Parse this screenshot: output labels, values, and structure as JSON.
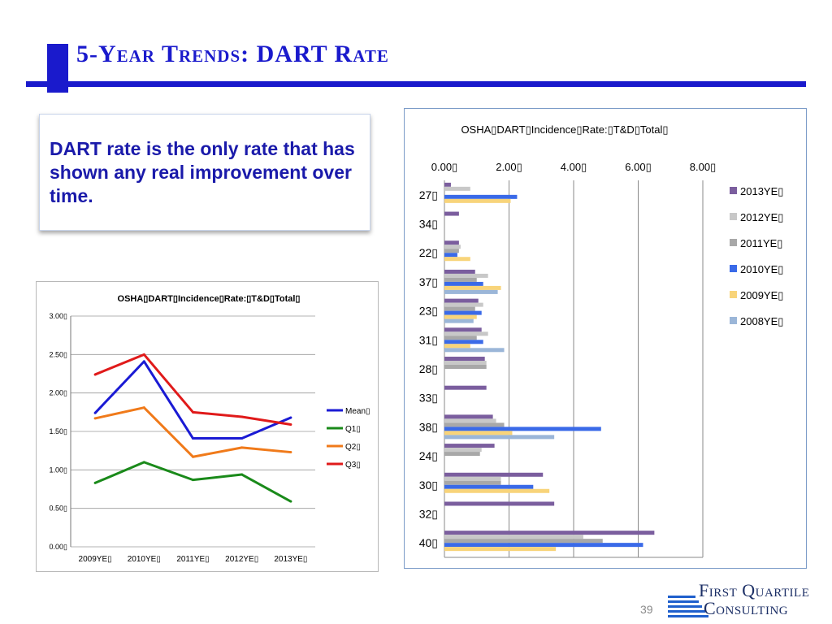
{
  "slide": {
    "title": "5-Year Trends: DART Rate",
    "callout": "DART rate is the only rate that has shown any real improvement over time.",
    "page_number": "39",
    "logo": {
      "line1": "First Quartile",
      "line2": "Consulting"
    },
    "colors": {
      "accent": "#1a1acc",
      "callout_text": "#1a1aaa",
      "logo_text": "#1c2f66",
      "logo_bars": "#1f5fcc"
    }
  },
  "chart_data": [
    {
      "type": "line",
      "title": "OSHA▯DART▯Incidence▯Rate:▯T&D▯Total▯",
      "categories": [
        "2009YE▯",
        "2010YE▯",
        "2011YE▯",
        "2012YE▯",
        "2013YE▯"
      ],
      "yticks": [
        "0.00▯",
        "0.50▯",
        "1.00▯",
        "1.50▯",
        "2.00▯",
        "2.50▯",
        "3.00▯"
      ],
      "ylim": [
        0,
        3
      ],
      "grid": true,
      "legend_position": "right",
      "series": [
        {
          "name": "Mean▯",
          "color": "#1a1ad4",
          "values": [
            1.74,
            2.41,
            1.41,
            1.41,
            1.68
          ]
        },
        {
          "name": "Q1▯",
          "color": "#1a8a1a",
          "values": [
            0.83,
            1.1,
            0.87,
            0.94,
            0.59
          ]
        },
        {
          "name": "Q2▯",
          "color": "#f07a1a",
          "values": [
            1.67,
            1.81,
            1.17,
            1.29,
            1.23
          ]
        },
        {
          "name": "Q3▯",
          "color": "#e01a1a",
          "values": [
            2.24,
            2.5,
            1.75,
            1.69,
            1.59
          ]
        }
      ]
    },
    {
      "type": "bar",
      "orientation": "horizontal",
      "title": "OSHA▯DART▯Incidence▯Rate:▯T&D▯Total▯",
      "categories": [
        "27▯",
        "34▯",
        "22▯",
        "37▯",
        "23▯",
        "31▯",
        "28▯",
        "33▯",
        "38▯",
        "24▯",
        "30▯",
        "32▯",
        "40▯"
      ],
      "xticks": [
        "0.00▯",
        "2.00▯",
        "4.00▯",
        "6.00▯",
        "8.00▯"
      ],
      "xlim": [
        0,
        8
      ],
      "axis_position": "top",
      "grid": true,
      "legend_position": "right",
      "series": [
        {
          "name": "2013YE▯",
          "color": "#7b5e9e",
          "values": [
            0.2,
            0.45,
            0.45,
            0.95,
            1.05,
            1.15,
            1.25,
            1.3,
            1.5,
            1.55,
            3.05,
            3.4,
            6.5
          ]
        },
        {
          "name": "2012YE▯",
          "color": "#c8c8c8",
          "values": [
            0.8,
            0,
            0.5,
            1.35,
            1.2,
            1.35,
            1.3,
            0,
            1.6,
            1.15,
            1.75,
            0,
            4.3
          ]
        },
        {
          "name": "2011YE▯",
          "color": "#a8a8a8",
          "values": [
            0,
            0,
            0.45,
            1.0,
            0.95,
            1.0,
            1.3,
            0,
            1.85,
            1.1,
            1.75,
            0,
            4.9
          ]
        },
        {
          "name": "2010YE▯",
          "color": "#3a6ae8",
          "values": [
            2.25,
            0,
            0.4,
            1.2,
            1.15,
            1.2,
            0,
            0,
            4.85,
            0,
            2.75,
            0,
            6.15
          ]
        },
        {
          "name": "2009YE▯",
          "color": "#f8d47a",
          "values": [
            2.05,
            0,
            0.8,
            1.75,
            1.0,
            0.8,
            0,
            0,
            2.1,
            0,
            3.25,
            0,
            3.45
          ]
        },
        {
          "name": "2008YE▯",
          "color": "#9bb6d8",
          "values": [
            0,
            0,
            0,
            1.65,
            0.9,
            1.85,
            0,
            0,
            3.4,
            0,
            0,
            0,
            0
          ]
        }
      ]
    }
  ]
}
